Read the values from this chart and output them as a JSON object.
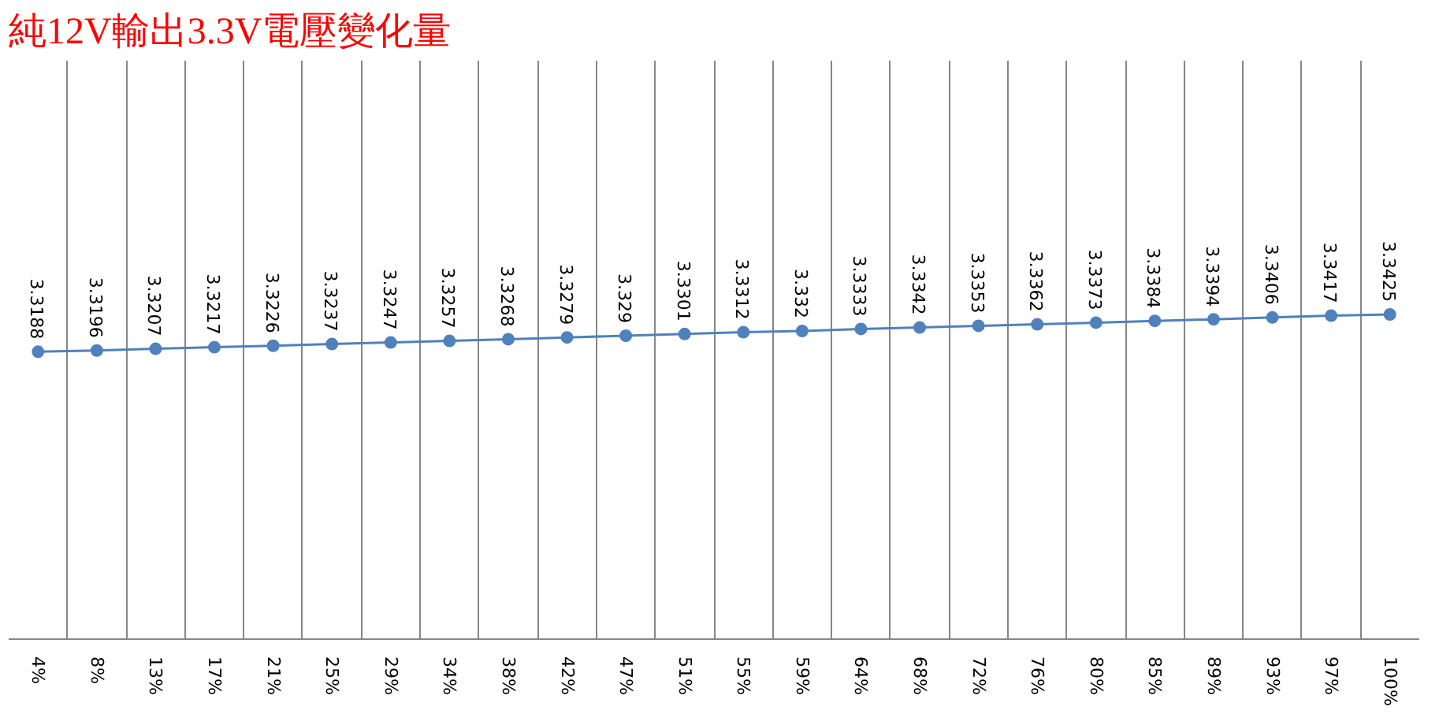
{
  "chart_data": {
    "type": "line",
    "title": "純12V輸出3.3V電壓變化量",
    "categories": [
      "4%",
      "8%",
      "13%",
      "17%",
      "21%",
      "25%",
      "29%",
      "34%",
      "38%",
      "42%",
      "47%",
      "51%",
      "55%",
      "59%",
      "64%",
      "68%",
      "72%",
      "76%",
      "80%",
      "85%",
      "89%",
      "93%",
      "97%",
      "100%"
    ],
    "series": [
      {
        "color": "#4f81bd",
        "values": [
          3.3188,
          3.3196,
          3.3207,
          3.3217,
          3.3226,
          3.3237,
          3.3247,
          3.3257,
          3.3268,
          3.3279,
          3.329,
          3.3301,
          3.3312,
          3.332,
          3.3333,
          3.3342,
          3.3353,
          3.3362,
          3.3373,
          3.3384,
          3.3394,
          3.3406,
          3.3417,
          3.3425
        ]
      }
    ],
    "data_labels": true,
    "grid": "x",
    "marker": "circle",
    "tick_labels": "x"
  }
}
